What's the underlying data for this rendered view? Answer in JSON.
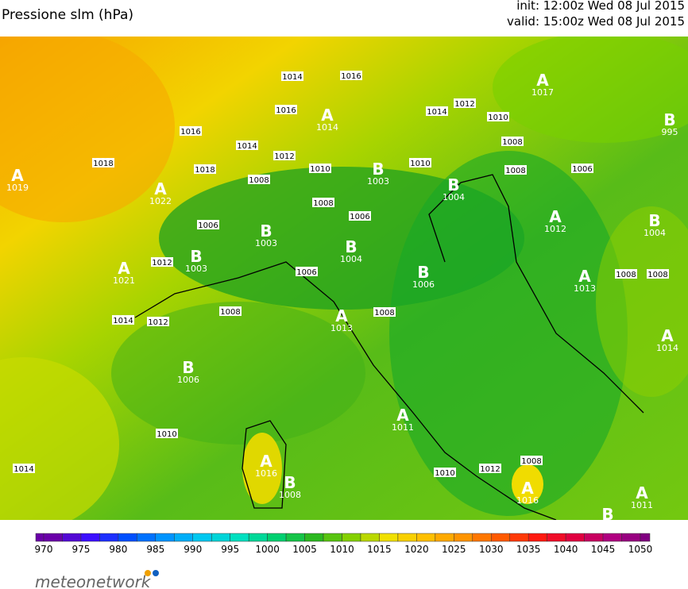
{
  "header": {
    "title": "Pressione slm (hPa)",
    "init": "init: 12:00z Wed 08 Jul 2015",
    "valid": "valid: 15:00z Wed 08 Jul 2015"
  },
  "map": {
    "centers": [
      {
        "letter": "A",
        "value": "1019"
      },
      {
        "letter": "A",
        "value": "1022"
      },
      {
        "letter": "A",
        "value": "1021"
      },
      {
        "letter": "B",
        "value": "1003"
      },
      {
        "letter": "B",
        "value": "1003"
      },
      {
        "letter": "B",
        "value": "1004"
      },
      {
        "letter": "B",
        "value": "1006"
      },
      {
        "letter": "B",
        "value": "1003"
      },
      {
        "letter": "B",
        "value": "1004"
      },
      {
        "letter": "A",
        "value": "1014"
      },
      {
        "letter": "A",
        "value": "1017"
      },
      {
        "letter": "B",
        "value": "995"
      },
      {
        "letter": "A",
        "value": "1012"
      },
      {
        "letter": "B",
        "value": "1004"
      },
      {
        "letter": "A",
        "value": "1013"
      },
      {
        "letter": "A",
        "value": "1014"
      },
      {
        "letter": "A",
        "value": "1013"
      },
      {
        "letter": "B",
        "value": "1006"
      },
      {
        "letter": "A",
        "value": "1011"
      },
      {
        "letter": "A",
        "value": "1016"
      },
      {
        "letter": "B",
        "value": "1008"
      },
      {
        "letter": "A",
        "value": "1016"
      },
      {
        "letter": "A",
        "value": "1011"
      },
      {
        "letter": "B"
      }
    ],
    "isobar_labels": [
      "1014",
      "1016",
      "1016",
      "1016",
      "1014",
      "1018",
      "1018",
      "1012",
      "1010",
      "1008",
      "1008",
      "1010",
      "1014",
      "1012",
      "1010",
      "1008",
      "1008",
      "1006",
      "1006",
      "1006",
      "1012",
      "1006",
      "1008",
      "1008",
      "1014",
      "1012",
      "1010",
      "1014",
      "1008",
      "1012",
      "1010",
      "1008",
      "1008"
    ]
  },
  "colorbar": {
    "ticks": [
      "970",
      "975",
      "980",
      "985",
      "990",
      "995",
      "1000",
      "1005",
      "1010",
      "1015",
      "1020",
      "1025",
      "1030",
      "1035",
      "1040",
      "1045",
      "1050"
    ],
    "colors": [
      "#6a00a8",
      "#3c10ff",
      "#0050ff",
      "#0094ff",
      "#00c8f0",
      "#00e0c0",
      "#00d070",
      "#2cb820",
      "#84d000",
      "#f0e000",
      "#ffc000",
      "#ff9400",
      "#ff5a00",
      "#ff1a10",
      "#e00040",
      "#b00080",
      "#800080"
    ]
  },
  "logo": {
    "text": "meteonetwork"
  }
}
